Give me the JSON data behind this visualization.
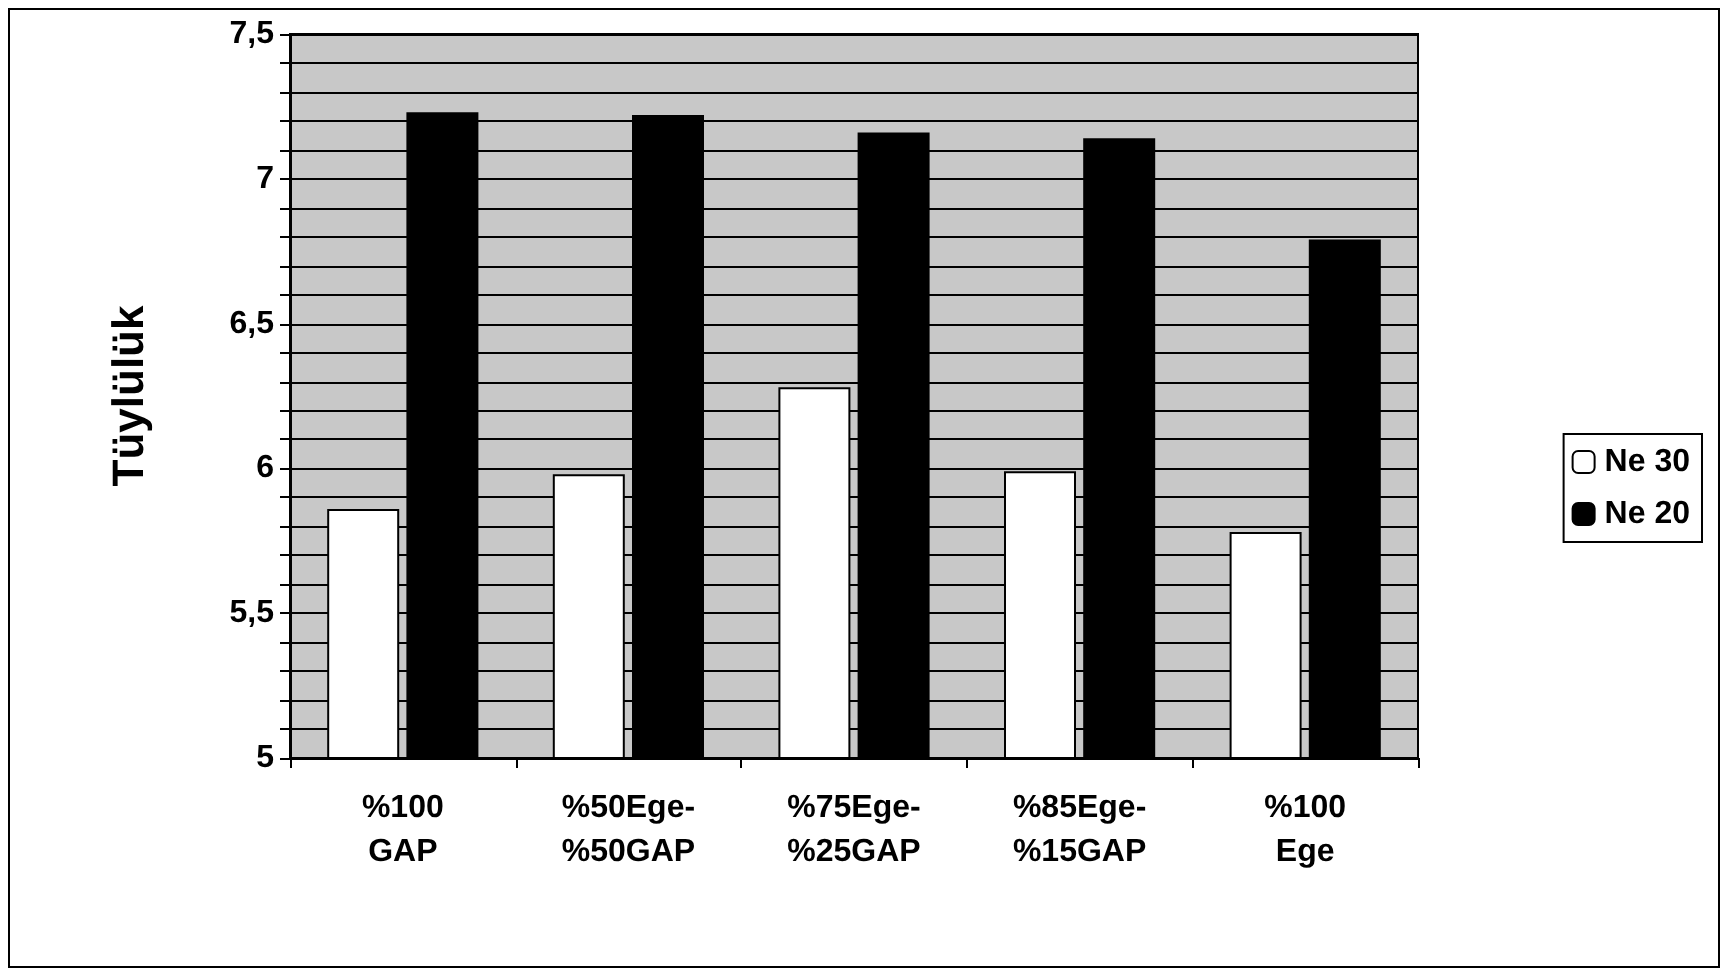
{
  "chart_data": {
    "type": "bar",
    "ylabel": "Tüylülük",
    "categories": [
      "%100\nGAP",
      "%50Ege-\n%50GAP",
      "%75Ege-\n%25GAP",
      "%85Ege-\n%15GAP",
      "%100\nEge"
    ],
    "series": [
      {
        "name": "Ne 30",
        "color": "#ffffff",
        "values": [
          5.86,
          5.98,
          6.28,
          5.99,
          5.78
        ]
      },
      {
        "name": "Ne 20",
        "color": "#000000",
        "values": [
          7.23,
          7.22,
          7.16,
          7.14,
          6.79
        ]
      }
    ],
    "ylim": [
      5,
      7.5
    ],
    "yticks": [
      {
        "value": 5,
        "label": "5"
      },
      {
        "value": 5.1,
        "label": null
      },
      {
        "value": 5.2,
        "label": null
      },
      {
        "value": 5.3,
        "label": null
      },
      {
        "value": 5.4,
        "label": null
      },
      {
        "value": 5.5,
        "label": "5,5"
      },
      {
        "value": 5.6,
        "label": null
      },
      {
        "value": 5.7,
        "label": null
      },
      {
        "value": 5.8,
        "label": null
      },
      {
        "value": 5.9,
        "label": null
      },
      {
        "value": 6,
        "label": "6"
      },
      {
        "value": 6.1,
        "label": null
      },
      {
        "value": 6.2,
        "label": null
      },
      {
        "value": 6.3,
        "label": null
      },
      {
        "value": 6.4,
        "label": null
      },
      {
        "value": 6.5,
        "label": "6,5"
      },
      {
        "value": 6.6,
        "label": null
      },
      {
        "value": 6.7,
        "label": null
      },
      {
        "value": 6.8,
        "label": null
      },
      {
        "value": 6.9,
        "label": null
      },
      {
        "value": 7,
        "label": "7"
      },
      {
        "value": 7.1,
        "label": null
      },
      {
        "value": 7.2,
        "label": null
      },
      {
        "value": 7.3,
        "label": null
      },
      {
        "value": 7.4,
        "label": null
      },
      {
        "value": 7.5,
        "label": "7,5"
      }
    ],
    "grid": "y",
    "legend": "right"
  }
}
